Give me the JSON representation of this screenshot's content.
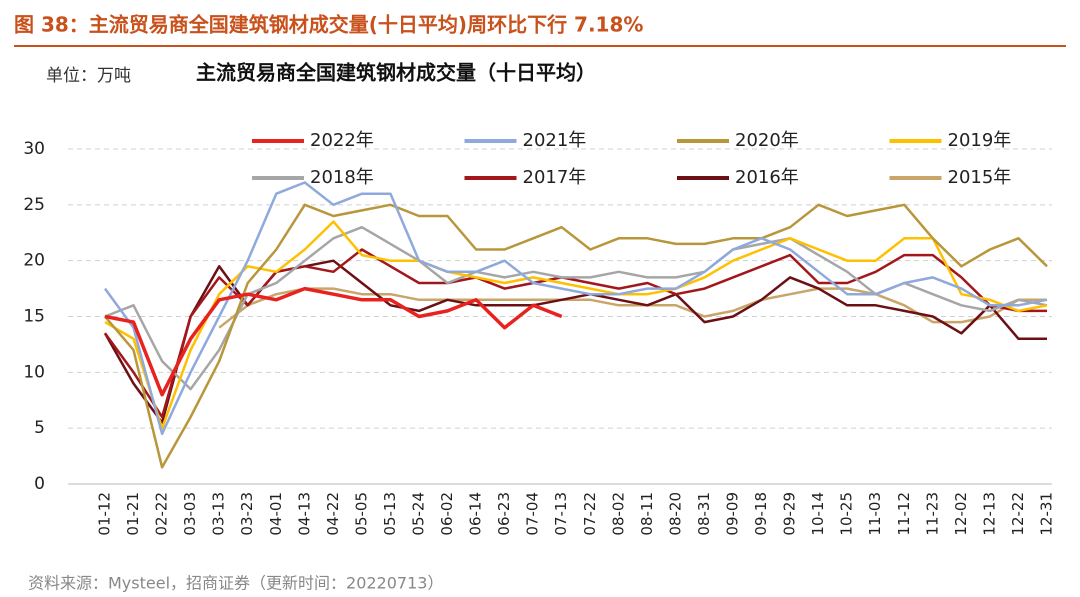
{
  "header": "图 38：主流贸易商全国建筑钢材成交量(十日平均)周环比下行 7.18%",
  "unit_label": "单位：万吨",
  "source": "资料来源：Mysteel，招商证券（更新时间：20220713）",
  "chart_data": {
    "type": "line",
    "title": "主流贸易商全国建筑钢材成交量（十日平均）",
    "categories": [
      "01-12",
      "01-21",
      "02-22",
      "03-03",
      "03-13",
      "03-23",
      "04-01",
      "04-13",
      "04-22",
      "05-05",
      "05-13",
      "05-24",
      "06-02",
      "06-14",
      "06-23",
      "07-04",
      "07-13",
      "07-22",
      "08-02",
      "08-11",
      "08-20",
      "08-31",
      "09-09",
      "09-18",
      "09-29",
      "10-14",
      "10-25",
      "11-03",
      "11-12",
      "11-23",
      "12-02",
      "12-13",
      "12-22",
      "12-31"
    ],
    "ylim": [
      0,
      30
    ],
    "yticks": [
      0,
      5,
      10,
      15,
      20,
      25,
      30
    ],
    "grid": true,
    "series": [
      {
        "name": "2022年",
        "color": "#e8231f",
        "values": [
          15,
          14.5,
          8,
          13,
          16.5,
          17,
          16.5,
          17.5,
          17,
          16.5,
          16.5,
          15,
          15.5,
          16.5,
          14,
          16,
          15,
          null,
          null,
          null,
          null,
          null,
          null,
          null,
          null,
          null,
          null,
          null,
          null,
          null,
          null,
          null,
          null,
          null
        ]
      },
      {
        "name": "2021年",
        "color": "#8fa9dc",
        "values": [
          17.5,
          14,
          4.5,
          10,
          15,
          20,
          26,
          27,
          25,
          26,
          26,
          20,
          19,
          19,
          20,
          18,
          17.5,
          17,
          17,
          17.5,
          17.5,
          19,
          21,
          22,
          21,
          19,
          17,
          17,
          18,
          18.5,
          17.5,
          16,
          16,
          16.5
        ]
      },
      {
        "name": "2020年",
        "color": "#b8963a",
        "values": [
          15,
          12,
          1.5,
          6,
          11,
          18,
          21,
          25,
          24,
          24.5,
          25,
          24,
          24,
          21,
          21,
          22,
          23,
          21,
          22,
          22,
          21.5,
          21.5,
          22,
          22,
          23,
          25,
          24,
          24.5,
          25,
          22,
          19.5,
          21,
          22,
          19.5
        ]
      },
      {
        "name": "2019年",
        "color": "#ffc000",
        "values": [
          14.5,
          13,
          5,
          12,
          17,
          19.5,
          19,
          21,
          23.5,
          20.5,
          20,
          20,
          19,
          18.5,
          18,
          18.5,
          18,
          17.5,
          17,
          17,
          17.5,
          18.5,
          20,
          21,
          22,
          21,
          20,
          20,
          22,
          22,
          17,
          16.5,
          15.5,
          16
        ]
      },
      {
        "name": "2018年",
        "color": "#a6a6a6",
        "values": [
          15,
          16,
          11,
          8.5,
          12,
          17,
          18,
          20,
          22,
          23,
          21.5,
          20,
          18,
          19,
          18.5,
          19,
          18.5,
          18.5,
          19,
          18.5,
          18.5,
          19,
          21,
          21.5,
          22,
          20.5,
          19,
          17,
          18,
          17,
          16,
          15.5,
          16.5,
          16
        ]
      },
      {
        "name": "2017年",
        "color": "#a3171c",
        "values": [
          13.5,
          10,
          6,
          15,
          18.5,
          16,
          19,
          19.5,
          19,
          21,
          19.5,
          18,
          18,
          18.5,
          17.5,
          18,
          18.5,
          18,
          17.5,
          18,
          17,
          17.5,
          18.5,
          19.5,
          20.5,
          18,
          18,
          19,
          20.5,
          20.5,
          18.5,
          16,
          15.5,
          15.5
        ]
      },
      {
        "name": "2016年",
        "color": "#6b1014",
        "values": [
          13.5,
          9,
          5.5,
          15,
          19.5,
          16,
          19,
          19.5,
          20,
          18,
          16,
          15.5,
          16.5,
          16,
          16,
          16,
          16.5,
          17,
          16.5,
          16,
          17,
          14.5,
          15,
          16.5,
          18.5,
          17.5,
          16,
          16,
          15.5,
          15,
          13.5,
          16,
          13,
          13
        ]
      },
      {
        "name": "2015年",
        "color": "#c9a56a",
        "values": [
          null,
          null,
          null,
          null,
          14,
          16,
          17,
          17.5,
          17.5,
          17,
          17,
          16.5,
          16.5,
          16.5,
          16.5,
          16.5,
          16.5,
          16.5,
          16,
          16,
          16,
          15,
          15.5,
          16.5,
          17,
          17.5,
          17.5,
          17,
          16,
          14.5,
          14.5,
          15,
          16.5,
          16.5
        ]
      }
    ]
  }
}
